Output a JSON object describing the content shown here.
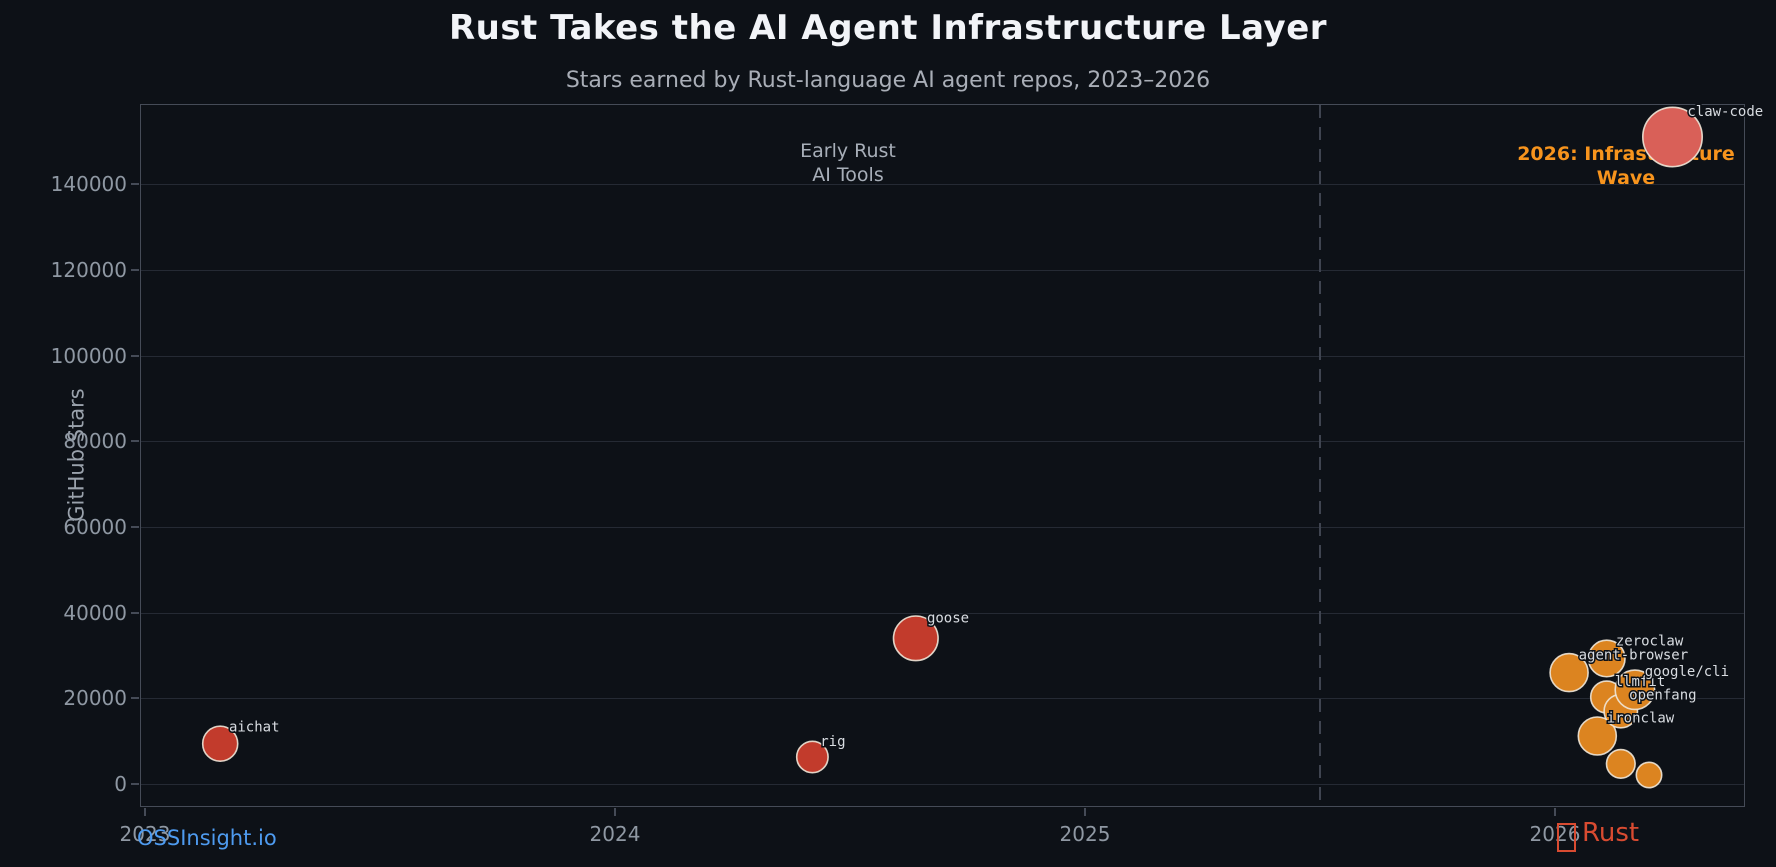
{
  "title": "Rust Takes the AI Agent Infrastructure Layer",
  "subtitle": "Stars earned by Rust-language AI agent repos, 2023–2026",
  "annotations": {
    "early": {
      "line1": "Early Rust",
      "line2": "AI Tools"
    },
    "wave": {
      "line1": "2026: Infrastructure",
      "line2": "Wave"
    }
  },
  "footer": {
    "left_label": "OSSInsight.io",
    "right_icon": "crab-emoji",
    "right_label": "Rust"
  },
  "colors": {
    "background": "#0d1117",
    "title": "#f2f4f8",
    "subtitle": "#a9aeb7",
    "axis_border": "#454b57",
    "grid": "#252a34",
    "tick_label": "#8f98a3",
    "divider": "#3f4450",
    "bubble_red": "#c23b2c",
    "bubble_orange": "#dc8420",
    "bubble_salmon": "#d96058",
    "bubble_edge": "#f0e7d8",
    "point_label": "#d8dce1",
    "annotation_early": "#a7aeb8",
    "annotation_wave": "#f7941d",
    "footer_left": "#4e9bf0",
    "footer_right": "#d84b31"
  },
  "chart_data": {
    "type": "scatter",
    "title": "Rust Takes the AI Agent Infrastructure Layer",
    "subtitle": "Stars earned by Rust-language AI agent repos, 2023–2026",
    "xlabel": "",
    "ylabel": "GitHub Stars",
    "x_ticks": [
      2023,
      2024,
      2025,
      2026
    ],
    "y_ticks": [
      0,
      20000,
      40000,
      60000,
      80000,
      100000,
      120000,
      140000
    ],
    "xlim": [
      2022.99,
      2026.41
    ],
    "ylim": [
      -5600,
      158500
    ],
    "grid": "horizontal",
    "legend": "none",
    "divider_x": 2025.5,
    "points": [
      {
        "repo": "aichat",
        "date": 2023.16,
        "stars": 9400,
        "r": 17.5,
        "color": "#c23b2c"
      },
      {
        "repo": "rig",
        "date": 2024.42,
        "stars": 6300,
        "r": 15.7,
        "color": "#c23b2c"
      },
      {
        "repo": "goose",
        "date": 2024.64,
        "stars": 34000,
        "r": 22.3,
        "color": "#c23b2c"
      },
      {
        "repo": "agent-browser",
        "date": 2026.03,
        "stars": 26000,
        "r": 19.0,
        "color": "#dc8420"
      },
      {
        "repo": "ironclaw",
        "date": 2026.09,
        "stars": 11200,
        "r": 19.0,
        "color": "#dc8420"
      },
      {
        "repo": "zeroclaw",
        "date": 2026.11,
        "stars": 29300,
        "r": 18.3,
        "color": "#dc8420"
      },
      {
        "repo": "llmfit",
        "date": 2026.11,
        "stars": 20300,
        "r": 16.0,
        "color": "#dc8420"
      },
      {
        "repo": "openfang",
        "date": 2026.14,
        "stars": 17000,
        "r": 16.7,
        "color": "#dc8420"
      },
      {
        "repo": "",
        "date": 2026.14,
        "stars": 4700,
        "r": 14.3,
        "color": "#dc8420"
      },
      {
        "repo": "google/cli",
        "date": 2026.17,
        "stars": 22000,
        "r": 19.7,
        "color": "#dc8420"
      },
      {
        "repo": "",
        "date": 2026.2,
        "stars": 2100,
        "r": 12.7,
        "color": "#dc8420"
      },
      {
        "repo": "claw-code",
        "date": 2026.25,
        "stars": 151000,
        "r": 29.7,
        "color": "#d96058"
      }
    ]
  }
}
